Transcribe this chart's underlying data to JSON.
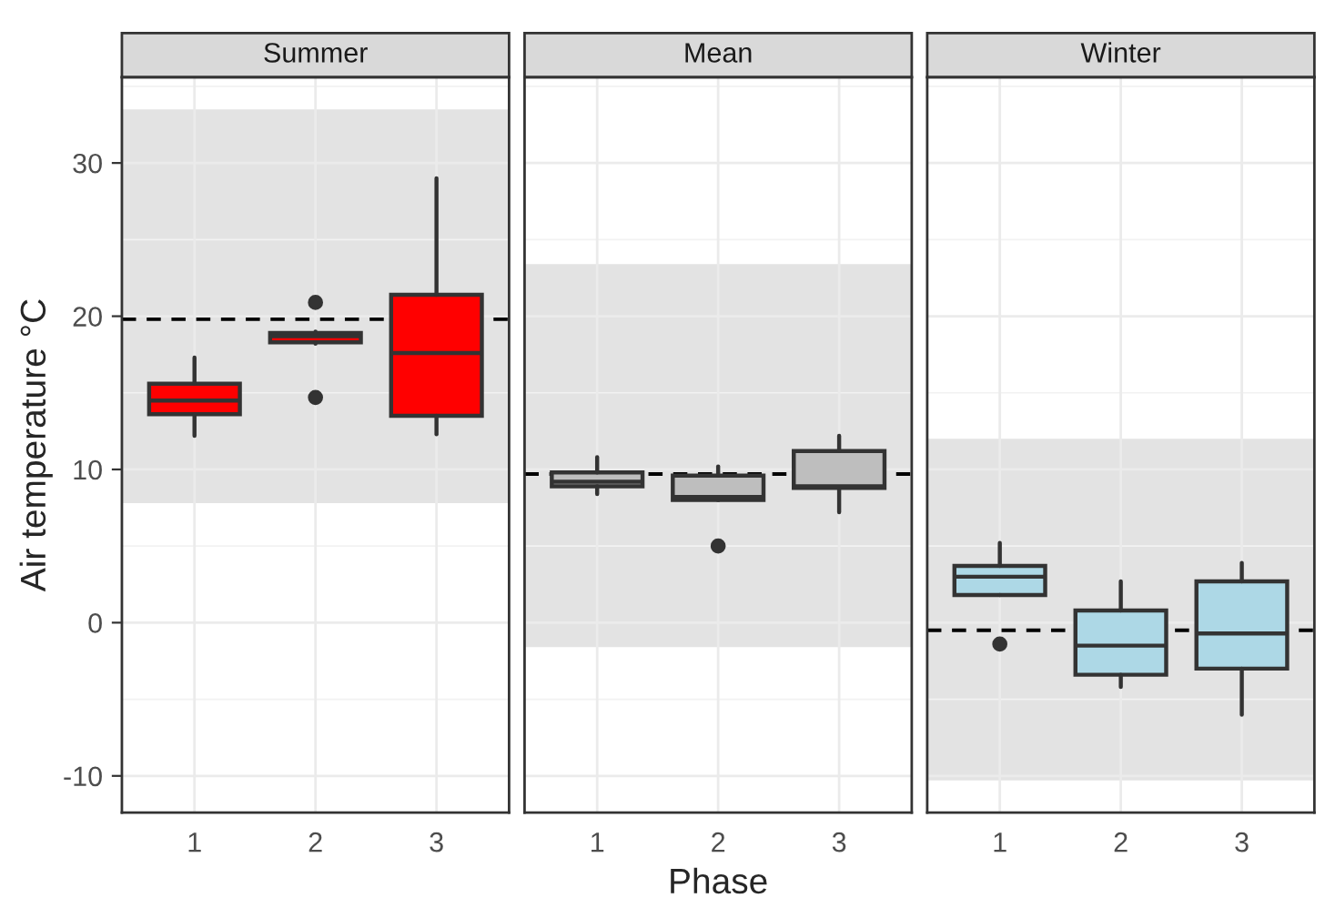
{
  "chart_data": [
    {
      "type": "box",
      "title": "Summer",
      "ylabel": "Air temperature °C",
      "categories": [
        "1",
        "2",
        "3"
      ],
      "color": "#ff0000",
      "boxes": [
        {
          "low": 12.2,
          "q1": 13.6,
          "median": 14.5,
          "q3": 15.6,
          "high": 17.3
        },
        {
          "low": 18.2,
          "q1": 18.3,
          "median": 18.7,
          "q3": 18.9,
          "high": 19.0,
          "outliers": [
            20.9,
            14.7
          ]
        },
        {
          "low": 12.3,
          "q1": 13.5,
          "median": 17.6,
          "q3": 21.4,
          "high": 29.0
        }
      ],
      "ylim": [
        -12.4,
        35.6
      ],
      "yticks": [
        -10,
        0,
        10,
        20,
        30
      ],
      "grid": true,
      "ref_lines": [
        {
          "axis": "y",
          "value": 19.8,
          "line_style": "dashed"
        }
      ],
      "bands": [
        {
          "axis": "y",
          "from": 7.8,
          "to": 33.5,
          "color": "#e3e3e3"
        }
      ]
    },
    {
      "type": "box",
      "title": "Mean",
      "xlabel": "Phase",
      "categories": [
        "1",
        "2",
        "3"
      ],
      "color": "#bebebe",
      "boxes": [
        {
          "low": 8.4,
          "q1": 8.9,
          "median": 9.2,
          "q3": 9.8,
          "high": 10.8
        },
        {
          "low": 8.0,
          "q1": 8.0,
          "median": 8.2,
          "q3": 9.6,
          "high": 10.2,
          "outliers": [
            5.0
          ]
        },
        {
          "low": 7.2,
          "q1": 8.8,
          "median": 8.9,
          "q3": 11.2,
          "high": 12.2
        }
      ],
      "ylim": [
        -12.4,
        35.6
      ],
      "yticks": [
        -10,
        0,
        10,
        20,
        30
      ],
      "grid": true,
      "tick_labels": "x",
      "ref_lines": [
        {
          "axis": "y",
          "value": 9.7,
          "line_style": "dashed"
        }
      ],
      "bands": [
        {
          "axis": "y",
          "from": -1.6,
          "to": 23.4,
          "color": "#e3e3e3"
        }
      ]
    },
    {
      "type": "box",
      "title": "Winter",
      "categories": [
        "1",
        "2",
        "3"
      ],
      "color": "#add8e6",
      "boxes": [
        {
          "low": 1.8,
          "q1": 1.8,
          "median": 3.0,
          "q3": 3.7,
          "high": 5.2,
          "outliers": [
            -1.4
          ]
        },
        {
          "low": -4.2,
          "q1": -3.4,
          "median": -1.5,
          "q3": 0.8,
          "high": 2.7
        },
        {
          "low": -6.0,
          "q1": -3.0,
          "median": -0.7,
          "q3": 2.7,
          "high": 3.9
        }
      ],
      "ylim": [
        -12.4,
        35.6
      ],
      "yticks": [
        -10,
        0,
        10,
        20,
        30
      ],
      "grid": true,
      "tick_labels": "x",
      "ref_lines": [
        {
          "axis": "y",
          "value": -0.5,
          "line_style": "dashed"
        }
      ],
      "bands": [
        {
          "axis": "y",
          "from": -10.3,
          "to": 12.0,
          "color": "#e3e3e3"
        }
      ]
    }
  ]
}
